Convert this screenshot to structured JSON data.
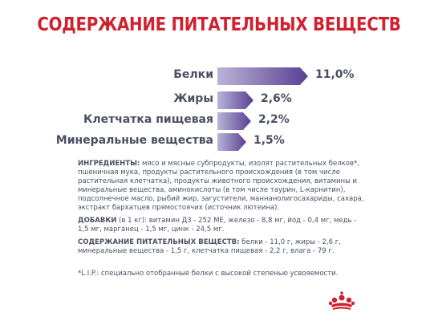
{
  "title": "СОДЕРЖАНИЕ ПИТАТЕЛЬНЫХ ВЕЩЕСТВ",
  "nutrients": [
    {
      "label": "Белки",
      "value": "11,0%",
      "fraction": 1.0
    },
    {
      "label": "Жиры",
      "value": "2,6%",
      "fraction": 0.24
    },
    {
      "label": "Клетчатка пищевая",
      "value": "2,2%",
      "fraction": 0.2
    },
    {
      "label": "Минеральные вещества",
      "value": "1,5%",
      "fraction": 0.14
    }
  ],
  "ingredients": {
    "heading": "ИНГРЕДИЕНТЫ:",
    "text": " мясо и мясные субпродукты, изолят растительных белков*, пшеничная мука, продукты растительного происхождения (в том числе растительная клетчатка), продукты животного происхождения, витамины и минеральные вещества, аминокислоты (в том числе таурин, L-карнитин), подсолнечное масло, рыбий жир, загустители, маннанолигосахариды, сахара, экстракт бархатцев прямостоячих (источник лютеина)."
  },
  "additives": {
    "heading": "ДОБАВКИ",
    "unit": " (в 1 кг):",
    "text": " витамин Д3 - 252 МЕ, железо - 8,8 мг, йод - 0,4 мг, медь - 1,5 мг, марганец - 1,5 мг, цинк - 24,5 мг."
  },
  "nutrition": {
    "heading": "СОДЕРЖАНИЕ ПИТАТЕЛЬНЫХ ВЕЩЕСТВ:",
    "text": " белки - 11,0 г, жиры - 2,6 г, минеральные вещества - 1,5 г, клетчатка пищевая - 2,2 г, влага - 79 г."
  },
  "footnote": "*L.I.P.: специально отобранные белки с высокой степенью усвояемости.",
  "colors": {
    "title": "#d1202f",
    "bar_start": "#b9b4d8",
    "bar_end": "#5b3f93",
    "text": "#4a4f63"
  },
  "logo_icon": "royal-crown-icon"
}
